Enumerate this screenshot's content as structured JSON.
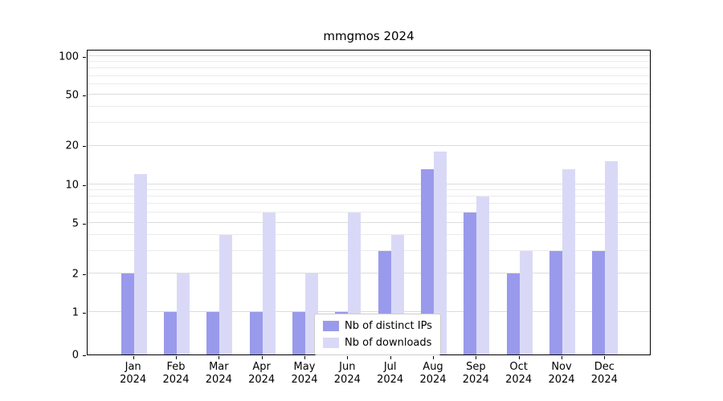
{
  "chart_data": {
    "type": "bar",
    "title": "mmgmos 2024",
    "categories": [
      "Jan",
      "Feb",
      "Mar",
      "Apr",
      "May",
      "Jun",
      "Jul",
      "Aug",
      "Sep",
      "Oct",
      "Nov",
      "Dec"
    ],
    "year": "2024",
    "series": [
      {
        "name": "Nb of distinct IPs",
        "color": "#9a9aec",
        "values": [
          2,
          1,
          1,
          1,
          1,
          1,
          3,
          13,
          6,
          2,
          3,
          3
        ]
      },
      {
        "name": "Nb of downloads",
        "color": "#d9d9f7",
        "values": [
          12,
          2,
          4,
          6,
          2,
          6,
          4,
          18,
          8,
          3,
          13,
          15
        ]
      }
    ],
    "yscale": "symlog",
    "yticks": [
      0,
      1,
      2,
      5,
      10,
      20,
      50,
      100
    ],
    "minor_gridlines": [
      3,
      4,
      6,
      7,
      8,
      9,
      30,
      40,
      60,
      70,
      80,
      90
    ],
    "ylim": [
      0,
      100
    ],
    "xlabel": "",
    "ylabel": "",
    "grid": "horizontal",
    "legend_position": "lower center"
  }
}
